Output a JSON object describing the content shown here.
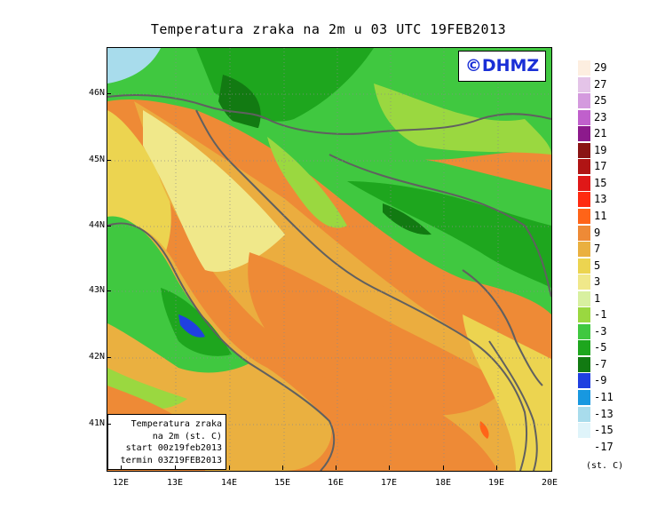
{
  "title": "Temperatura zraka na 2m u 03 UTC 19FEB2013",
  "logo": "©DHMZ",
  "info_box": {
    "line1": "Temperatura zraka",
    "line2": "na 2m (st. C)",
    "line3": "start 00z19feb2013",
    "line4": "termin 03Z19FEB2013"
  },
  "lat_labels": [
    "46N",
    "45N",
    "44N",
    "43N",
    "42N",
    "41N"
  ],
  "lon_labels": [
    "12E",
    "13E",
    "14E",
    "15E",
    "16E",
    "17E",
    "18E",
    "19E",
    "20E"
  ],
  "colorbar": {
    "unit": "(st. C)",
    "levels": [
      {
        "label": "29",
        "color": "#fdeee0"
      },
      {
        "label": "27",
        "color": "#e4c4e8"
      },
      {
        "label": "25",
        "color": "#d49ade"
      },
      {
        "label": "23",
        "color": "#c060cc"
      },
      {
        "label": "21",
        "color": "#8c1a8c"
      },
      {
        "label": "19",
        "color": "#8a1414"
      },
      {
        "label": "17",
        "color": "#b01414"
      },
      {
        "label": "15",
        "color": "#e01818"
      },
      {
        "label": "13",
        "color": "#ff2a10"
      },
      {
        "label": "11",
        "color": "#ff6418"
      },
      {
        "label": "9",
        "color": "#ee8a36"
      },
      {
        "label": "7",
        "color": "#eab040"
      },
      {
        "label": "5",
        "color": "#ecd450"
      },
      {
        "label": "3",
        "color": "#f0e88a"
      },
      {
        "label": "1",
        "color": "#d8f0a0"
      },
      {
        "label": "-1",
        "color": "#9ad840"
      },
      {
        "label": "-3",
        "color": "#40c840"
      },
      {
        "label": "-5",
        "color": "#1ea61e"
      },
      {
        "label": "-7",
        "color": "#127a12"
      },
      {
        "label": "-9",
        "color": "#2040e0"
      },
      {
        "label": "-11",
        "color": "#1898e0"
      },
      {
        "label": "-13",
        "color": "#a8dcec"
      },
      {
        "label": "-15",
        "color": "#dff4fa"
      },
      {
        "label": "-17",
        "color": "#ffffff"
      }
    ]
  }
}
